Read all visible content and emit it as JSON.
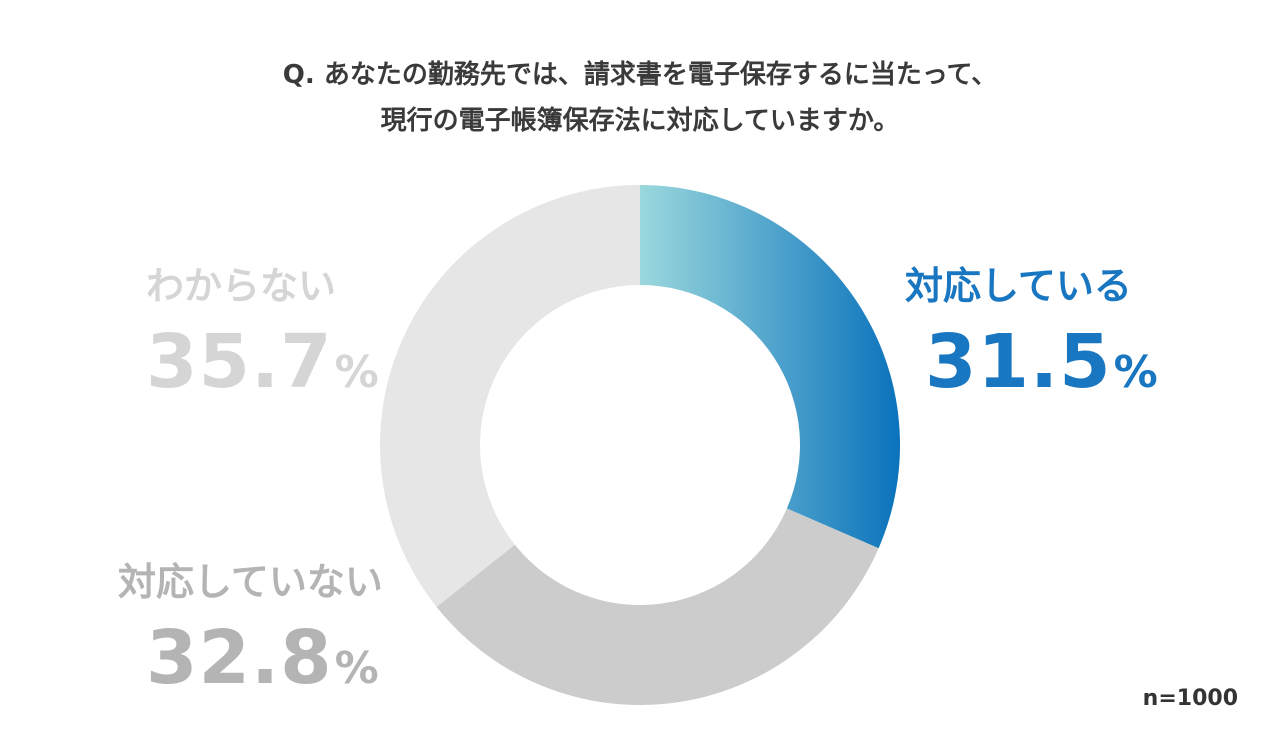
{
  "title": {
    "line1": "Q. あなたの勤務先では、請求書を電子保存するに当たって、",
    "line2": "現行の電子帳簿保存法に対応していますか。"
  },
  "sample_size": "n=1000",
  "chart_data": {
    "type": "pie",
    "donut": true,
    "start_angle_deg": 0,
    "direction": "clockwise",
    "slices": [
      {
        "label": "対応している",
        "value": 31.5,
        "value_text": "31.5",
        "unit": "%",
        "color_start": "#9bd8dd",
        "color_end": "#0a72bc",
        "label_color": "#1976c0"
      },
      {
        "label": "対応していない",
        "value": 32.8,
        "value_text": "32.8",
        "unit": "%",
        "color": "#cccccc",
        "label_color": "#b4b4b4"
      },
      {
        "label": "わからない",
        "value": 35.7,
        "value_text": "35.7",
        "unit": "%",
        "color": "#e6e6e6",
        "label_color": "#d5d5d5"
      }
    ]
  }
}
